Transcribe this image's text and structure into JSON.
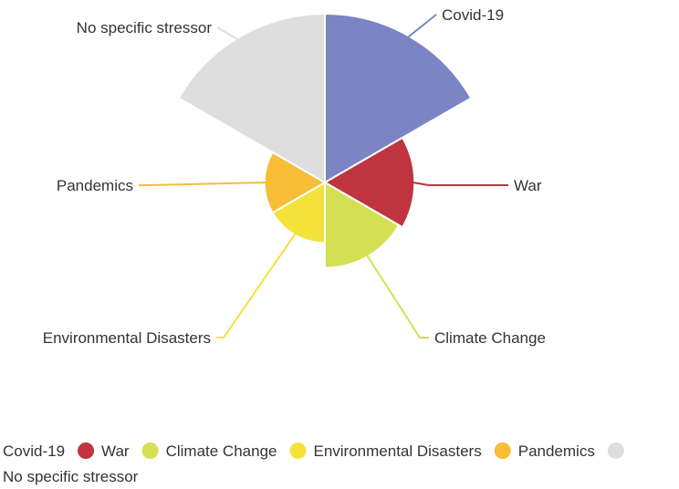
{
  "chart_data": {
    "type": "nightingale_rose",
    "title": "",
    "series": [
      {
        "name": "Covid-19",
        "value": 7.8,
        "color": "#7b84c4"
      },
      {
        "name": "War",
        "value": 2.2,
        "color": "#c0343f"
      },
      {
        "name": "Climate Change",
        "value": 2.0,
        "color": "#d4df54"
      },
      {
        "name": "Environmental Disasters",
        "value": 1.0,
        "color": "#f3e23a"
      },
      {
        "name": "Pandemics",
        "value": 1.0,
        "color": "#f7bd36"
      },
      {
        "name": "No specific stressor",
        "value": 7.8,
        "color": "#dedede"
      }
    ],
    "legend_position": "bottom"
  }
}
